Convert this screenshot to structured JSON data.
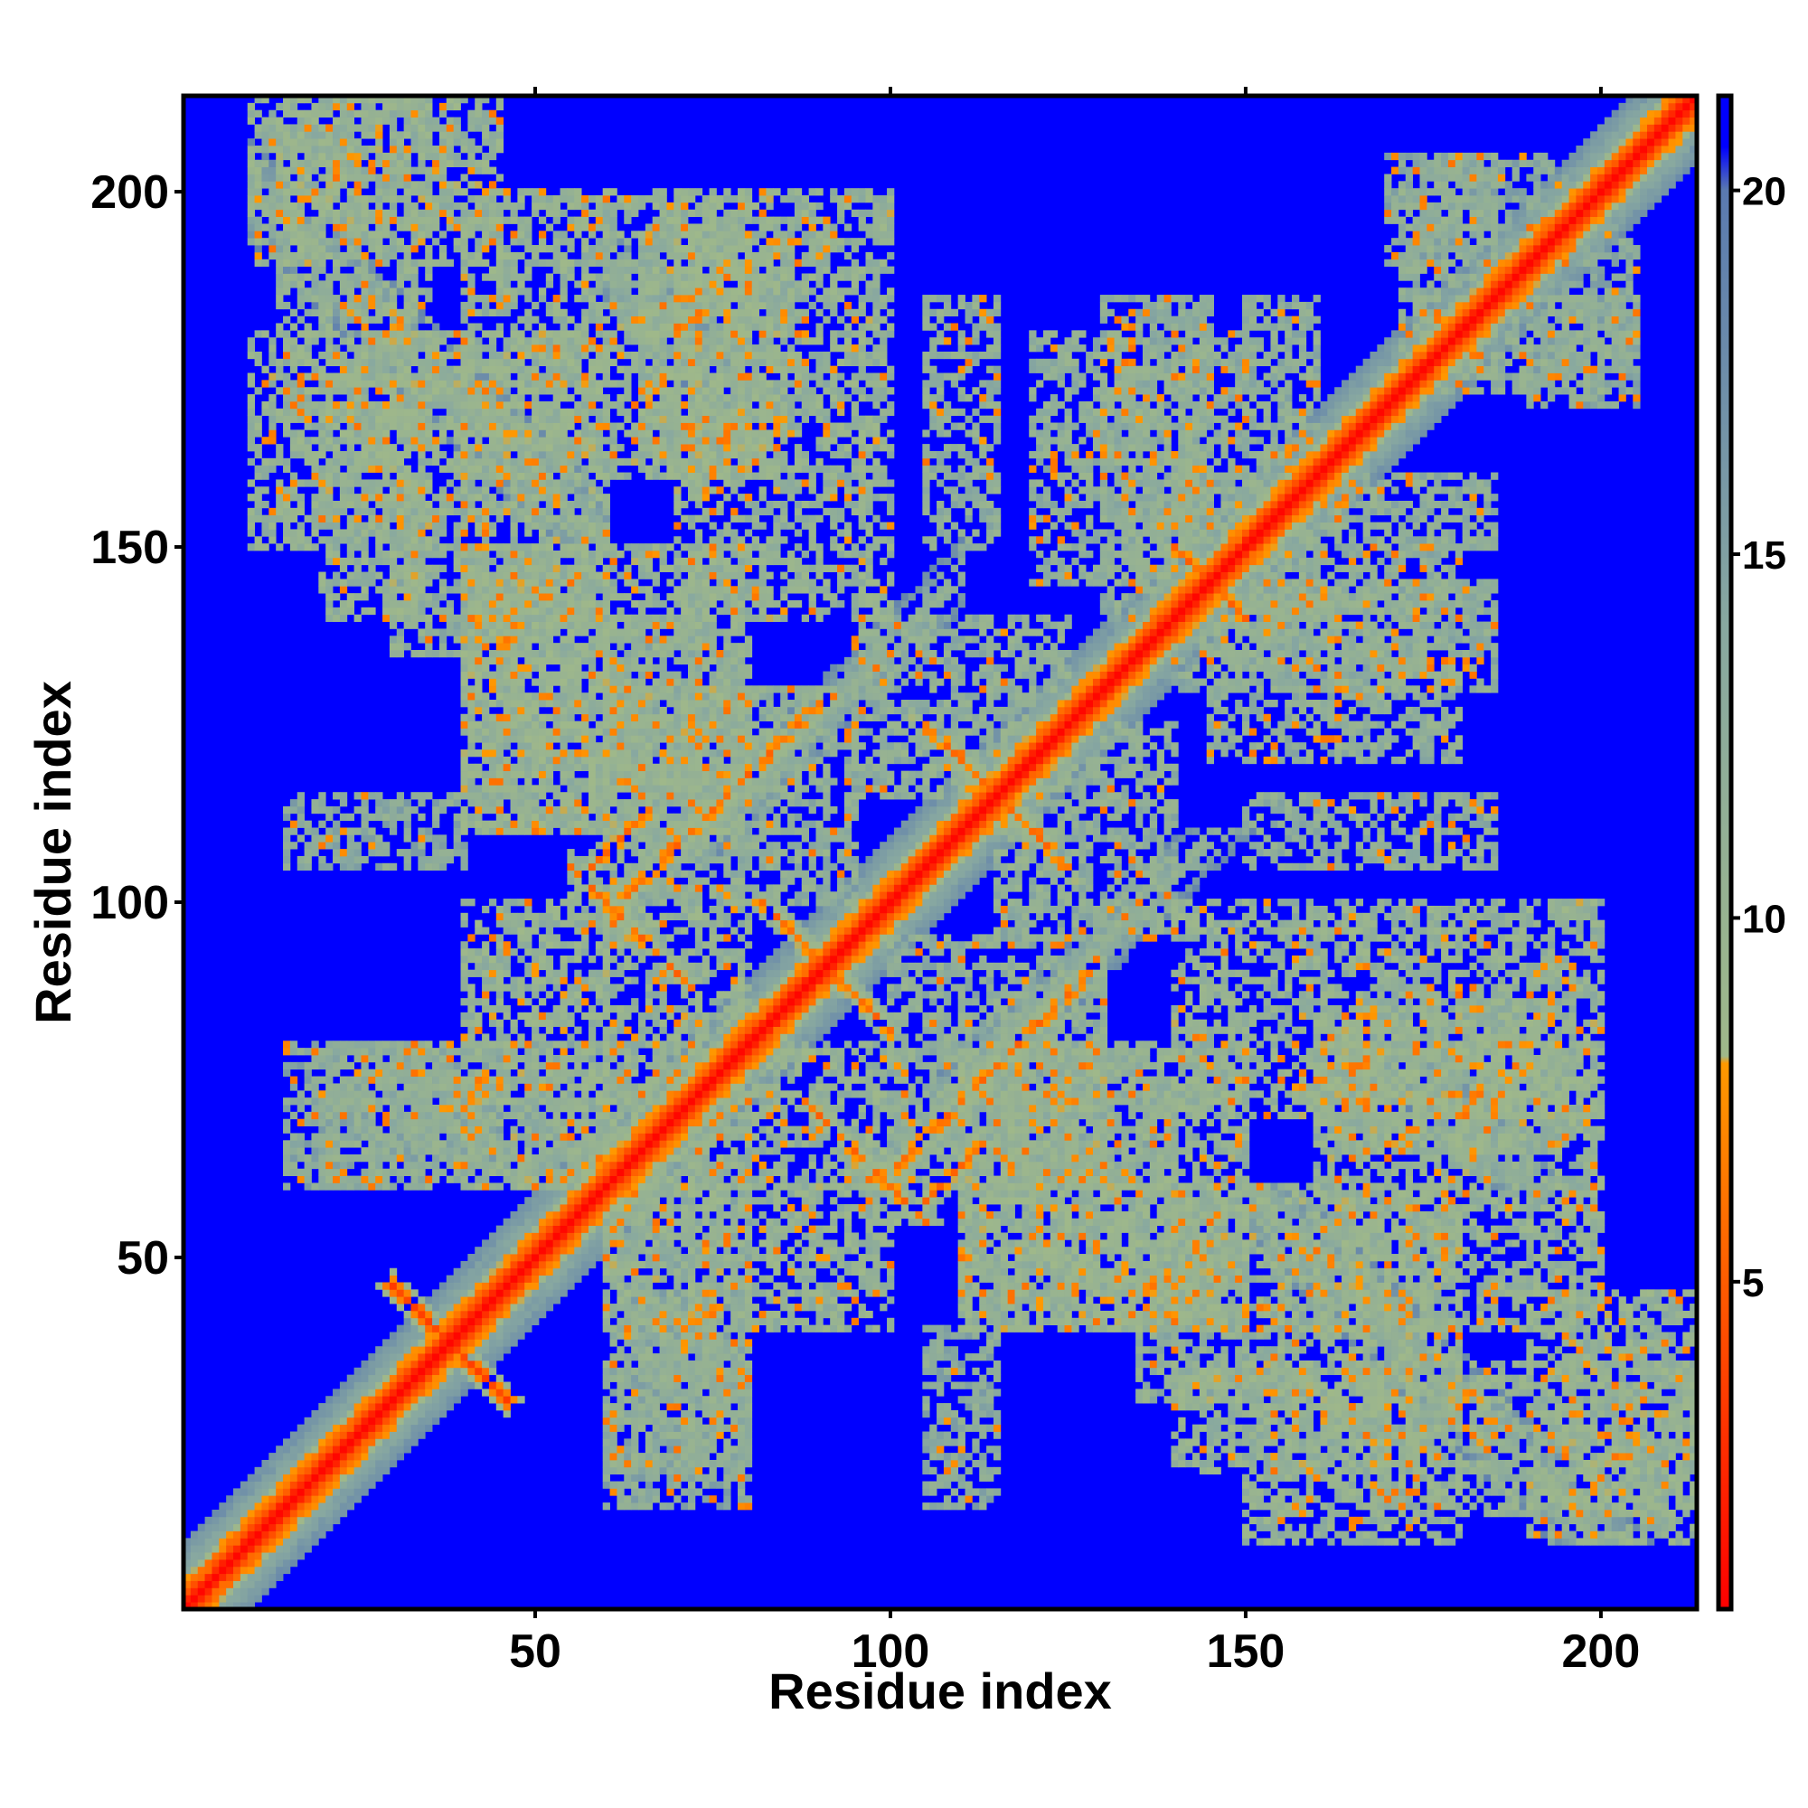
{
  "chart_data": {
    "type": "heatmap",
    "title": "",
    "xlabel": "Residue index",
    "ylabel": "Residue index",
    "n_residues": 213,
    "xlim": [
      1,
      213
    ],
    "ylim": [
      1,
      213
    ],
    "x_ticks": [
      50,
      100,
      150,
      200
    ],
    "y_ticks": [
      50,
      100,
      150,
      200
    ],
    "colorbar": {
      "ticks": [
        5,
        10,
        15,
        20
      ],
      "range": [
        0.5,
        21.3
      ],
      "stops": [
        {
          "value": 0.5,
          "color": "#ff0000"
        },
        {
          "value": 5.5,
          "color": "#ff6600"
        },
        {
          "value": 8.0,
          "color": "#ff9900"
        },
        {
          "value": 8.1,
          "color": "#9fb88a"
        },
        {
          "value": 14.0,
          "color": "#88a8a0"
        },
        {
          "value": 20.0,
          "color": "#5a7ab0"
        },
        {
          "value": 20.6,
          "color": "#0000ff"
        },
        {
          "value": 21.3,
          "color": "#0000ff"
        }
      ]
    },
    "background_value": 21,
    "background_color": "#0000ff",
    "grid": false,
    "legend": "right",
    "contact_bands": [
      {
        "type": "diagonal",
        "i_range": [
          1,
          213
        ],
        "offset": 0,
        "width": 4,
        "value": 2
      },
      {
        "type": "diagonal",
        "i_range": [
          1,
          213
        ],
        "offset": 0,
        "width": 9,
        "value": 10
      },
      {
        "type": "antiparallel",
        "sum": 76,
        "i_range": [
          30,
          46
        ],
        "width": 2,
        "value": 4
      },
      {
        "type": "antiparallel",
        "sum": 160,
        "i_range": [
          55,
          72
        ],
        "width": 2,
        "value": 6
      },
      {
        "type": "antiparallel",
        "sum": 182,
        "i_range": [
          84,
          100
        ],
        "width": 2,
        "value": 6
      },
      {
        "type": "antiparallel",
        "sum": 230,
        "i_range": [
          108,
          126
        ],
        "width": 2,
        "value": 6
      },
      {
        "type": "antiparallel",
        "sum": 290,
        "i_range": [
          140,
          150
        ],
        "width": 2,
        "value": 6
      },
      {
        "type": "antiparallel",
        "sum": 210,
        "i_range": [
          10,
          60
        ],
        "width": 7,
        "value": 11
      },
      {
        "type": "antiparallel",
        "sum": 250,
        "i_range": [
          60,
          80
        ],
        "width": 6,
        "value": 11
      },
      {
        "type": "parallel",
        "offset": 38,
        "i_range": [
          60,
          90
        ],
        "width": 3,
        "value": 6
      },
      {
        "type": "parallel",
        "offset": 47,
        "i_range": [
          55,
          66
        ],
        "width": 2,
        "value": 6
      },
      {
        "type": "parallel",
        "offset": 36,
        "i_range": [
          75,
          110
        ],
        "width": 5,
        "value": 11
      }
    ],
    "contact_patches": [
      {
        "x": [
          14,
          35
        ],
        "y": [
          168,
          213
        ],
        "value": 11
      },
      {
        "x": [
          20,
          35
        ],
        "y": [
          140,
          170
        ],
        "value": 11
      },
      {
        "x": [
          40,
          60
        ],
        "y": [
          140,
          180
        ],
        "value": 11
      },
      {
        "x": [
          65,
          85
        ],
        "y": [
          160,
          195
        ],
        "value": 11
      },
      {
        "x": [
          105,
          115
        ],
        "y": [
          150,
          185
        ],
        "value": 12
      },
      {
        "x": [
          130,
          145
        ],
        "y": [
          140,
          185
        ],
        "value": 12
      },
      {
        "x": [
          150,
          160
        ],
        "y": [
          140,
          185
        ],
        "value": 12
      },
      {
        "x": [
          172,
          185
        ],
        "y": [
          175,
          205
        ],
        "value": 12
      },
      {
        "x": [
          190,
          205
        ],
        "y": [
          170,
          195
        ],
        "value": 13
      },
      {
        "x": [
          40,
          60
        ],
        "y": [
          110,
          145
        ],
        "value": 11
      },
      {
        "x": [
          60,
          80
        ],
        "y": [
          115,
          140
        ],
        "value": 12
      },
      {
        "x": [
          95,
          125
        ],
        "y": [
          115,
          140
        ],
        "value": 12
      },
      {
        "x": [
          145,
          180
        ],
        "y": [
          120,
          150
        ],
        "value": 12
      },
      {
        "x": [
          30,
          45
        ],
        "y": [
          62,
          80
        ],
        "value": 13
      },
      {
        "x": [
          40,
          60
        ],
        "y": [
          60,
          100
        ],
        "value": 11
      },
      {
        "x": [
          60,
          80
        ],
        "y": [
          60,
          100
        ],
        "value": 11
      },
      {
        "x": [
          100,
          130
        ],
        "y": [
          60,
          95
        ],
        "value": 12
      },
      {
        "x": [
          140,
          200
        ],
        "y": [
          70,
          100
        ],
        "value": 11
      },
      {
        "x": [
          160,
          200
        ],
        "y": [
          40,
          80
        ],
        "value": 11
      },
      {
        "x": [
          150,
          180
        ],
        "y": [
          10,
          40
        ],
        "value": 11
      },
      {
        "x": [
          135,
          150
        ],
        "y": [
          30,
          50
        ],
        "value": 12
      },
      {
        "x": [
          190,
          213
        ],
        "y": [
          10,
          45
        ],
        "value": 11
      },
      {
        "x": [
          110,
          150
        ],
        "y": [
          40,
          80
        ],
        "value": 11
      },
      {
        "x": [
          60,
          80
        ],
        "y": [
          20,
          60
        ],
        "value": 12
      },
      {
        "x": [
          105,
          115
        ],
        "y": [
          15,
          40
        ],
        "value": 13
      },
      {
        "x": [
          15,
          35
        ],
        "y": [
          60,
          80
        ],
        "value": 13
      }
    ]
  }
}
